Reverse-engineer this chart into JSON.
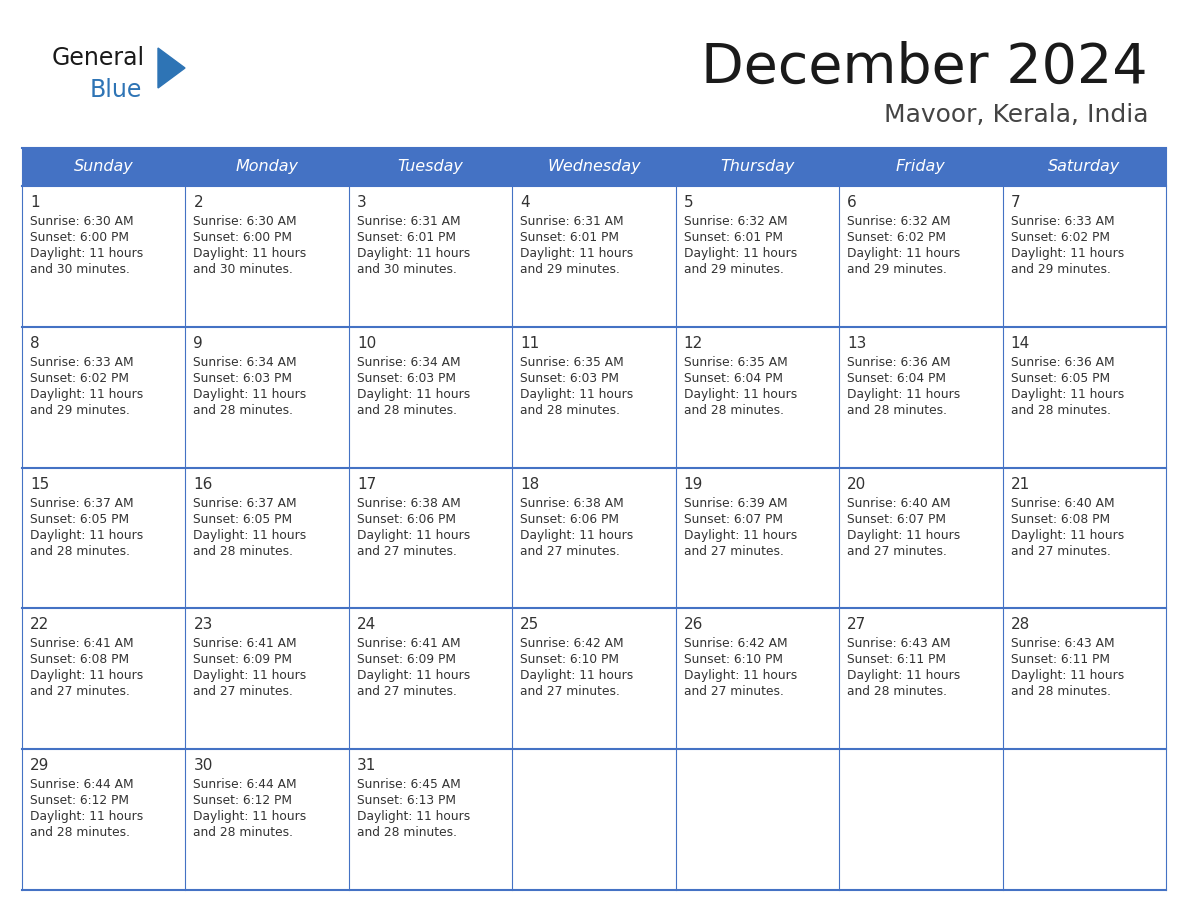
{
  "title": "December 2024",
  "subtitle": "Mavoor, Kerala, India",
  "header_color": "#4472C4",
  "header_text_color": "#FFFFFF",
  "day_names": [
    "Sunday",
    "Monday",
    "Tuesday",
    "Wednesday",
    "Thursday",
    "Friday",
    "Saturday"
  ],
  "cell_bg_color": "#FFFFFF",
  "cell_text_color": "#333333",
  "day_num_color": "#333333",
  "grid_line_color": "#4472C4",
  "logo_general_color": "#1a1a1a",
  "logo_blue_color": "#2E74B5",
  "days": [
    {
      "date": 1,
      "col": 0,
      "row": 0,
      "sunrise": "6:30 AM",
      "sunset": "6:00 PM",
      "daylight": "11 hours and 30 minutes."
    },
    {
      "date": 2,
      "col": 1,
      "row": 0,
      "sunrise": "6:30 AM",
      "sunset": "6:00 PM",
      "daylight": "11 hours and 30 minutes."
    },
    {
      "date": 3,
      "col": 2,
      "row": 0,
      "sunrise": "6:31 AM",
      "sunset": "6:01 PM",
      "daylight": "11 hours and 30 minutes."
    },
    {
      "date": 4,
      "col": 3,
      "row": 0,
      "sunrise": "6:31 AM",
      "sunset": "6:01 PM",
      "daylight": "11 hours and 29 minutes."
    },
    {
      "date": 5,
      "col": 4,
      "row": 0,
      "sunrise": "6:32 AM",
      "sunset": "6:01 PM",
      "daylight": "11 hours and 29 minutes."
    },
    {
      "date": 6,
      "col": 5,
      "row": 0,
      "sunrise": "6:32 AM",
      "sunset": "6:02 PM",
      "daylight": "11 hours and 29 minutes."
    },
    {
      "date": 7,
      "col": 6,
      "row": 0,
      "sunrise": "6:33 AM",
      "sunset": "6:02 PM",
      "daylight": "11 hours and 29 minutes."
    },
    {
      "date": 8,
      "col": 0,
      "row": 1,
      "sunrise": "6:33 AM",
      "sunset": "6:02 PM",
      "daylight": "11 hours and 29 minutes."
    },
    {
      "date": 9,
      "col": 1,
      "row": 1,
      "sunrise": "6:34 AM",
      "sunset": "6:03 PM",
      "daylight": "11 hours and 28 minutes."
    },
    {
      "date": 10,
      "col": 2,
      "row": 1,
      "sunrise": "6:34 AM",
      "sunset": "6:03 PM",
      "daylight": "11 hours and 28 minutes."
    },
    {
      "date": 11,
      "col": 3,
      "row": 1,
      "sunrise": "6:35 AM",
      "sunset": "6:03 PM",
      "daylight": "11 hours and 28 minutes."
    },
    {
      "date": 12,
      "col": 4,
      "row": 1,
      "sunrise": "6:35 AM",
      "sunset": "6:04 PM",
      "daylight": "11 hours and 28 minutes."
    },
    {
      "date": 13,
      "col": 5,
      "row": 1,
      "sunrise": "6:36 AM",
      "sunset": "6:04 PM",
      "daylight": "11 hours and 28 minutes."
    },
    {
      "date": 14,
      "col": 6,
      "row": 1,
      "sunrise": "6:36 AM",
      "sunset": "6:05 PM",
      "daylight": "11 hours and 28 minutes."
    },
    {
      "date": 15,
      "col": 0,
      "row": 2,
      "sunrise": "6:37 AM",
      "sunset": "6:05 PM",
      "daylight": "11 hours and 28 minutes."
    },
    {
      "date": 16,
      "col": 1,
      "row": 2,
      "sunrise": "6:37 AM",
      "sunset": "6:05 PM",
      "daylight": "11 hours and 28 minutes."
    },
    {
      "date": 17,
      "col": 2,
      "row": 2,
      "sunrise": "6:38 AM",
      "sunset": "6:06 PM",
      "daylight": "11 hours and 27 minutes."
    },
    {
      "date": 18,
      "col": 3,
      "row": 2,
      "sunrise": "6:38 AM",
      "sunset": "6:06 PM",
      "daylight": "11 hours and 27 minutes."
    },
    {
      "date": 19,
      "col": 4,
      "row": 2,
      "sunrise": "6:39 AM",
      "sunset": "6:07 PM",
      "daylight": "11 hours and 27 minutes."
    },
    {
      "date": 20,
      "col": 5,
      "row": 2,
      "sunrise": "6:40 AM",
      "sunset": "6:07 PM",
      "daylight": "11 hours and 27 minutes."
    },
    {
      "date": 21,
      "col": 6,
      "row": 2,
      "sunrise": "6:40 AM",
      "sunset": "6:08 PM",
      "daylight": "11 hours and 27 minutes."
    },
    {
      "date": 22,
      "col": 0,
      "row": 3,
      "sunrise": "6:41 AM",
      "sunset": "6:08 PM",
      "daylight": "11 hours and 27 minutes."
    },
    {
      "date": 23,
      "col": 1,
      "row": 3,
      "sunrise": "6:41 AM",
      "sunset": "6:09 PM",
      "daylight": "11 hours and 27 minutes."
    },
    {
      "date": 24,
      "col": 2,
      "row": 3,
      "sunrise": "6:41 AM",
      "sunset": "6:09 PM",
      "daylight": "11 hours and 27 minutes."
    },
    {
      "date": 25,
      "col": 3,
      "row": 3,
      "sunrise": "6:42 AM",
      "sunset": "6:10 PM",
      "daylight": "11 hours and 27 minutes."
    },
    {
      "date": 26,
      "col": 4,
      "row": 3,
      "sunrise": "6:42 AM",
      "sunset": "6:10 PM",
      "daylight": "11 hours and 27 minutes."
    },
    {
      "date": 27,
      "col": 5,
      "row": 3,
      "sunrise": "6:43 AM",
      "sunset": "6:11 PM",
      "daylight": "11 hours and 28 minutes."
    },
    {
      "date": 28,
      "col": 6,
      "row": 3,
      "sunrise": "6:43 AM",
      "sunset": "6:11 PM",
      "daylight": "11 hours and 28 minutes."
    },
    {
      "date": 29,
      "col": 0,
      "row": 4,
      "sunrise": "6:44 AM",
      "sunset": "6:12 PM",
      "daylight": "11 hours and 28 minutes."
    },
    {
      "date": 30,
      "col": 1,
      "row": 4,
      "sunrise": "6:44 AM",
      "sunset": "6:12 PM",
      "daylight": "11 hours and 28 minutes."
    },
    {
      "date": 31,
      "col": 2,
      "row": 4,
      "sunrise": "6:45 AM",
      "sunset": "6:13 PM",
      "daylight": "11 hours and 28 minutes."
    }
  ]
}
